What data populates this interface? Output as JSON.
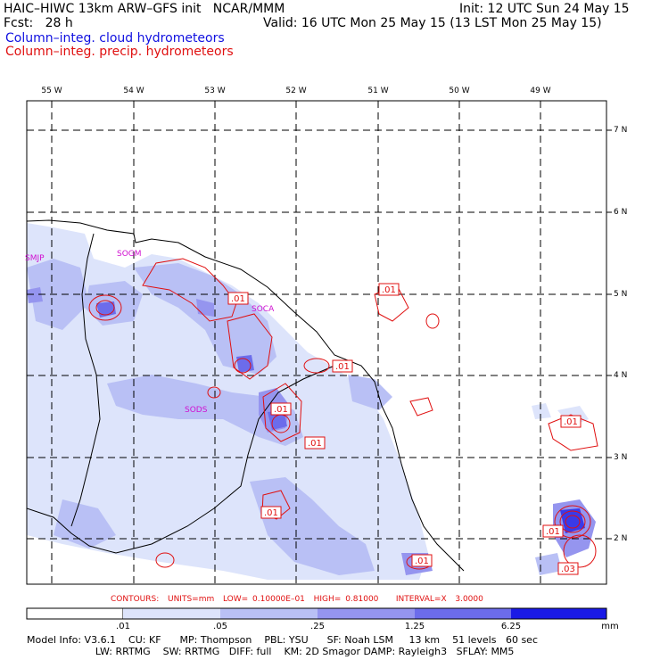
{
  "header": {
    "title": "HAIC–HIWC 13km ARW–GFS init   NCAR/MMM",
    "init": "Init: 12 UTC Sun 24 May 15",
    "fcst_label": "Fcst:   28 h",
    "valid": "Valid: 16 UTC Mon 25 May 15 (13 LST Mon 25 May 15)",
    "field_cloud": "Column–integ. cloud hydrometeors",
    "field_precip": "Column–integ. precip. hydrometeors"
  },
  "axes": {
    "lon_labels": [
      "55 W",
      "54 W",
      "53 W",
      "52 W",
      "51 W",
      "50 W",
      "49 W"
    ],
    "lat_labels": [
      "7 N",
      "6 N",
      "5 N",
      "4 N",
      "3 N",
      "2 N"
    ]
  },
  "stations": [
    "SMJP",
    "SOGM",
    "SOCA",
    "SODS"
  ],
  "contour_labels": [
    ".01",
    ".01",
    ".01",
    ".01",
    ".01",
    ".01",
    ".01",
    ".01",
    ".01",
    ".03"
  ],
  "contours_info": "CONTOURS:  UNITS=mm  LOW= 0.10000E–01  HIGH= 0.81000    INTERVAL=X  3.0000",
  "colorbar": {
    "labels": [
      ".01",
      ".05",
      ".25",
      "1.25",
      "6.25"
    ],
    "units": "mm",
    "colors": [
      "#ffffff",
      "#dde4fb",
      "#b9c0f5",
      "#9595ef",
      "#6c6ceb",
      "#3a3ae8",
      "#1a1ae6"
    ]
  },
  "model_info": {
    "line1": "Model Info: V3.6.1    CU: KF      MP: Thompson    PBL: YSU      SF: Noah LSM     13 km    51 levels   60 sec",
    "line2": "                      LW: RRTMG    SW: RRTMG   DIFF: full    KM: 2D Smagor DAMP: Rayleigh3   SFLAY: MM5"
  },
  "colors": {
    "cloud_title": "#1010e0",
    "precip": "#e01010",
    "station": "#d010d0"
  }
}
